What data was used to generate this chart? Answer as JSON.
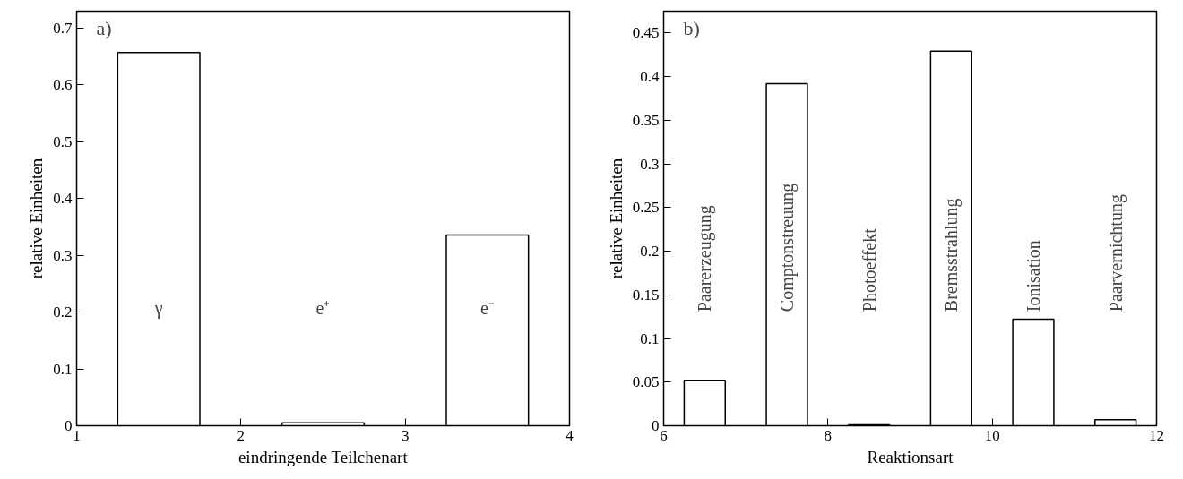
{
  "chart_data": [
    {
      "type": "bar",
      "title": "a)",
      "xlabel": "eindringende Teilchenart",
      "ylabel": "relative Einheiten",
      "x": [
        1.5,
        2.5,
        3.5
      ],
      "values": [
        0.657,
        0.005,
        0.336
      ],
      "color": "#ffffff",
      "xlim": [
        1,
        4
      ],
      "xticks": [
        1,
        2,
        3,
        4
      ],
      "ylim": [
        0,
        0.73
      ],
      "yticks": [
        0,
        0.1,
        0.2,
        0.3,
        0.4,
        0.5,
        0.6,
        0.7
      ],
      "annotations": [
        "γ",
        "e⁺",
        "e⁻"
      ]
    },
    {
      "type": "bar",
      "title": "b)",
      "xlabel": "Reaktionsart",
      "ylabel": "relative Einheiten",
      "x": [
        6.5,
        7.5,
        8.5,
        9.5,
        10.5,
        11.5
      ],
      "values": [
        0.052,
        0.392,
        0.001,
        0.429,
        0.122,
        0.007
      ],
      "color": "#ffffff",
      "xlim": [
        6,
        12
      ],
      "xticks": [
        6,
        8,
        10,
        12
      ],
      "ylim": [
        0,
        0.475
      ],
      "yticks": [
        0,
        0.05,
        0.1,
        0.15,
        0.2,
        0.25,
        0.3,
        0.35,
        0.4,
        0.45
      ],
      "annotations": [
        "Paarerzeugung",
        "Comptonstreuung",
        "Photoeffekt",
        "Bremsstrahlung",
        "Ionisation",
        "Paarvernichtung"
      ]
    }
  ]
}
